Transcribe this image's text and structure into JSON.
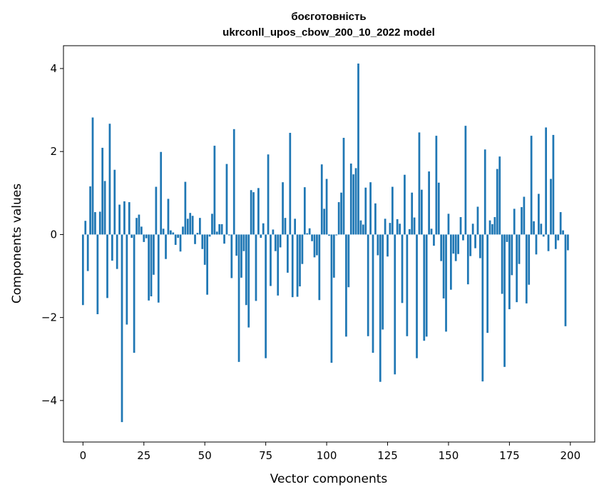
{
  "chart_data": {
    "type": "bar",
    "title": "боєготовність",
    "subtitle": "ukrconll_upos_cbow_200_10_2022 model",
    "xlabel": "Vector components",
    "ylabel": "Components values",
    "xlim": [
      -8,
      210
    ],
    "ylim": [
      -5.0,
      4.55
    ],
    "xticks": [
      0,
      25,
      50,
      75,
      100,
      125,
      150,
      175,
      200
    ],
    "yticks": [
      -4,
      -2,
      0,
      2,
      4
    ],
    "grid": false,
    "bar_color": "#1f77b4",
    "values": [
      -1.7,
      0.33,
      -0.88,
      1.16,
      2.82,
      0.54,
      -1.92,
      0.55,
      2.09,
      1.29,
      -1.53,
      2.67,
      -0.63,
      1.56,
      -0.83,
      0.72,
      -4.52,
      0.8,
      -2.17,
      0.78,
      -0.08,
      -2.85,
      0.4,
      0.48,
      0.19,
      -0.18,
      -0.09,
      -1.59,
      -1.49,
      -0.97,
      1.15,
      -1.64,
      1.99,
      0.14,
      -0.59,
      0.86,
      0.1,
      0.05,
      -0.25,
      -0.08,
      -0.41,
      0.19,
      1.27,
      0.38,
      0.52,
      0.45,
      -0.23,
      0.04,
      0.4,
      -0.35,
      -0.73,
      -1.45,
      -0.05,
      0.5,
      2.14,
      0.07,
      0.25,
      0.25,
      -0.22,
      1.7,
      -0.02,
      -1.05,
      2.54,
      -0.51,
      -3.07,
      -1.04,
      -0.4,
      -1.7,
      -2.24,
      1.07,
      1.02,
      -1.6,
      1.12,
      -0.08,
      0.27,
      -2.98,
      1.93,
      -1.24,
      0.12,
      -0.4,
      -1.47,
      -0.31,
      1.26,
      0.4,
      -0.92,
      2.45,
      -1.51,
      0.38,
      -1.5,
      -1.25,
      -0.71,
      1.14,
      0.03,
      0.15,
      -0.16,
      -0.55,
      -0.5,
      -1.58,
      1.69,
      0.62,
      1.34,
      -0.03,
      -3.09,
      -1.04,
      -0.02,
      0.78,
      1.01,
      2.33,
      -2.46,
      -1.27,
      1.71,
      1.45,
      1.6,
      4.12,
      0.34,
      0.24,
      1.13,
      -2.45,
      1.26,
      -2.85,
      0.75,
      -0.5,
      -3.55,
      -2.29,
      0.38,
      -0.53,
      0.28,
      1.15,
      -3.37,
      0.37,
      0.26,
      -1.65,
      1.44,
      -2.45,
      0.13,
      1.01,
      0.41,
      -2.98,
      2.46,
      1.08,
      -2.56,
      -2.46,
      1.52,
      0.14,
      -0.27,
      2.38,
      1.25,
      -0.64,
      -1.54,
      -2.34,
      0.5,
      -1.33,
      -0.46,
      -0.64,
      -0.47,
      0.42,
      -0.14,
      2.62,
      -1.2,
      -0.52,
      0.26,
      -0.33,
      0.67,
      -0.57,
      -3.54,
      2.05,
      -2.37,
      0.34,
      0.25,
      0.42,
      1.58,
      1.88,
      -1.43,
      -3.19,
      -0.18,
      -1.8,
      -0.98,
      0.62,
      -1.63,
      -0.71,
      0.66,
      0.91,
      -1.66,
      -1.21,
      2.38,
      0.32,
      -0.48,
      0.98,
      0.26,
      -0.05,
      2.58,
      -0.4,
      1.34,
      2.4,
      -0.35,
      -0.14,
      0.54,
      0.1,
      -2.21,
      -0.38
    ]
  }
}
